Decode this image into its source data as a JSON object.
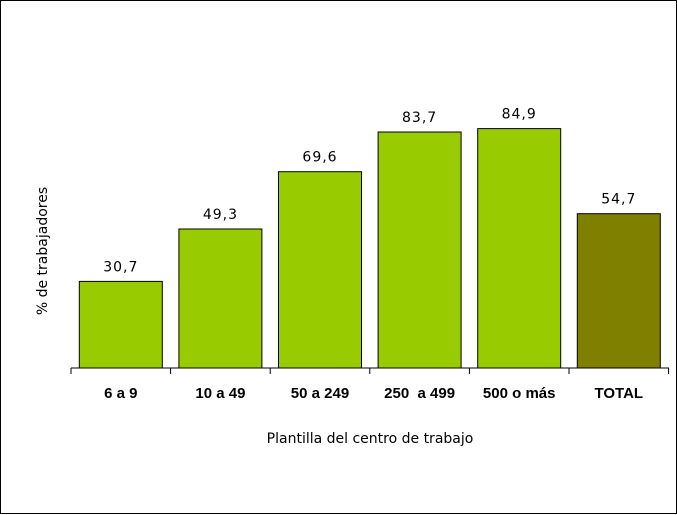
{
  "chart_data": {
    "type": "bar",
    "categories": [
      "6 a 9",
      "10 a 49",
      "50 a 249",
      "250  a 499",
      "500 o más",
      "TOTAL"
    ],
    "values": [
      30.7,
      49.3,
      69.6,
      83.7,
      84.9,
      54.7
    ],
    "value_labels": [
      "30,7",
      "49,3",
      "69,6",
      "83,7",
      "84,9",
      "54,7"
    ],
    "xlabel": "Plantilla del centro de trabajo",
    "ylabel": "% de trabajadores",
    "ylim": [
      0,
      100
    ],
    "grid": false,
    "legend": "none",
    "colors": {
      "bar": "#99CC00",
      "total_bar": "#808000",
      "bar_outline": "#000000"
    }
  }
}
